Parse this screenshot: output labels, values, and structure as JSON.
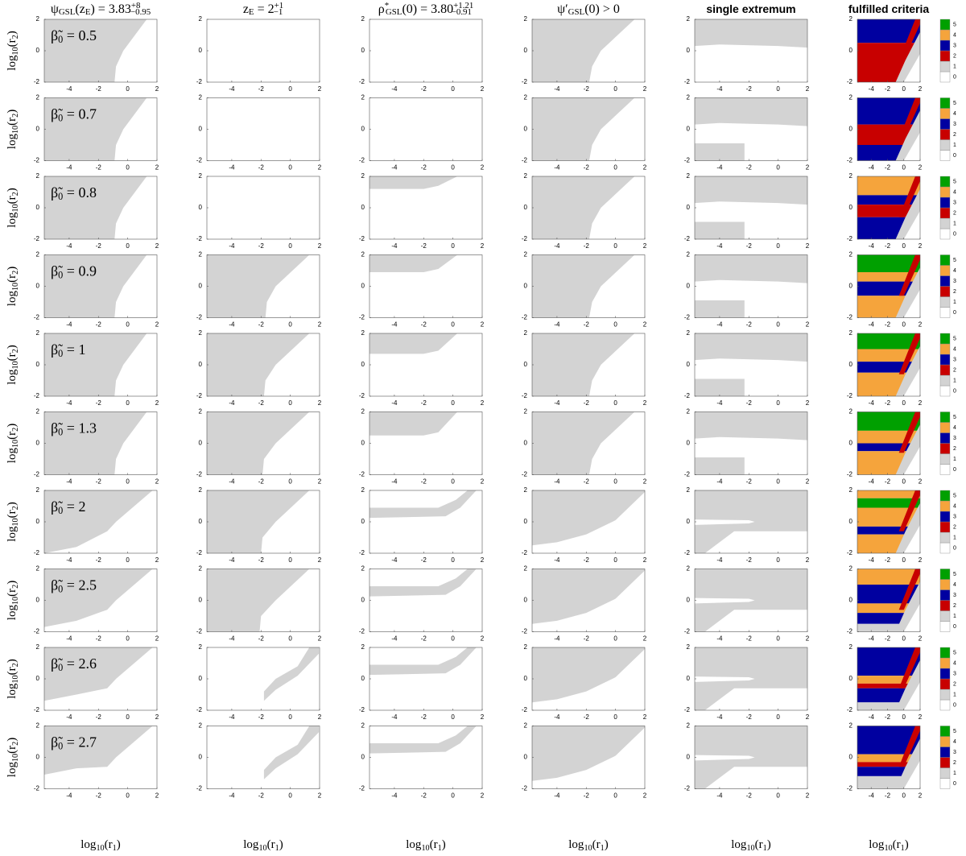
{
  "chart_data": {
    "type": "region",
    "columns": [
      [
        {
          "text": "ψ"
        },
        {
          "sub": "GSL"
        },
        {
          "text": "(z"
        },
        {
          "sub": "E"
        },
        {
          "text": ") = 3.83"
        },
        {
          "sup": "+8"
        },
        {
          "sub": "−0.95"
        }
      ],
      [
        {
          "text": "z"
        },
        {
          "sub": "E"
        },
        {
          "text": " = 2"
        },
        {
          "sup": "+1"
        },
        {
          "sub": "−1"
        }
      ],
      [
        {
          "text": "ρ"
        },
        {
          "sup": "*"
        },
        {
          "sub": "GSL"
        },
        {
          "text": "(0) = 3.80"
        },
        {
          "sup": "+1.21"
        },
        {
          "sub": "−0.91"
        }
      ],
      [
        {
          "text": "ψ′"
        },
        {
          "sub": "GSL"
        },
        {
          "text": "(0) > 0"
        }
      ],
      [
        {
          "text": "single extremum"
        }
      ],
      [
        {
          "text": "fulfilled criteria"
        }
      ]
    ],
    "rows": [
      [
        {
          "text": "β̃"
        },
        {
          "sub": "0"
        },
        {
          "text": " = 0.5"
        }
      ],
      [
        {
          "text": "β̃"
        },
        {
          "sub": "0"
        },
        {
          "text": " = 0.7"
        }
      ],
      [
        {
          "text": "β̃"
        },
        {
          "sub": "0"
        },
        {
          "text": " = 0.8"
        }
      ],
      [
        {
          "text": "β̃"
        },
        {
          "sub": "0"
        },
        {
          "text": " = 0.9"
        }
      ],
      [
        {
          "text": "β̃"
        },
        {
          "sub": "0"
        },
        {
          "text": " = 1"
        }
      ],
      [
        {
          "text": "β̃"
        },
        {
          "sub": "0"
        },
        {
          "text": " = 1.3"
        }
      ],
      [
        {
          "text": "β̃"
        },
        {
          "sub": "0"
        },
        {
          "text": " = 2"
        }
      ],
      [
        {
          "text": "β̃"
        },
        {
          "sub": "0"
        },
        {
          "text": " = 2.5"
        }
      ],
      [
        {
          "text": "β̃"
        },
        {
          "sub": "0"
        },
        {
          "text": " = 2.6"
        }
      ],
      [
        {
          "text": "β̃"
        },
        {
          "sub": "0"
        },
        {
          "text": " = 2.7"
        }
      ]
    ],
    "x_label": [
      {
        "text": "log"
      },
      {
        "sub": "10"
      },
      {
        "text": "(r"
      },
      {
        "sub": "1"
      },
      {
        "text": ")"
      }
    ],
    "y_label": [
      {
        "text": "log"
      },
      {
        "sub": "10"
      },
      {
        "text": "(r"
      },
      {
        "sub": "2"
      },
      {
        "text": ")"
      }
    ],
    "xlim": [
      -5.7,
      2
    ],
    "ylim": [
      -2,
      2
    ],
    "xticks": [
      -4,
      -2,
      0,
      2
    ],
    "yticks": [
      -2,
      0,
      2
    ],
    "region_color": "#d3d3d3",
    "colorbar_ticks": [
      0,
      1,
      2,
      3,
      4,
      5
    ],
    "colorbar_colors": [
      "#ffffff",
      "#d3d3d3",
      "#c80000",
      "#0000a0",
      "#f5a43c",
      "#00a000"
    ]
  }
}
